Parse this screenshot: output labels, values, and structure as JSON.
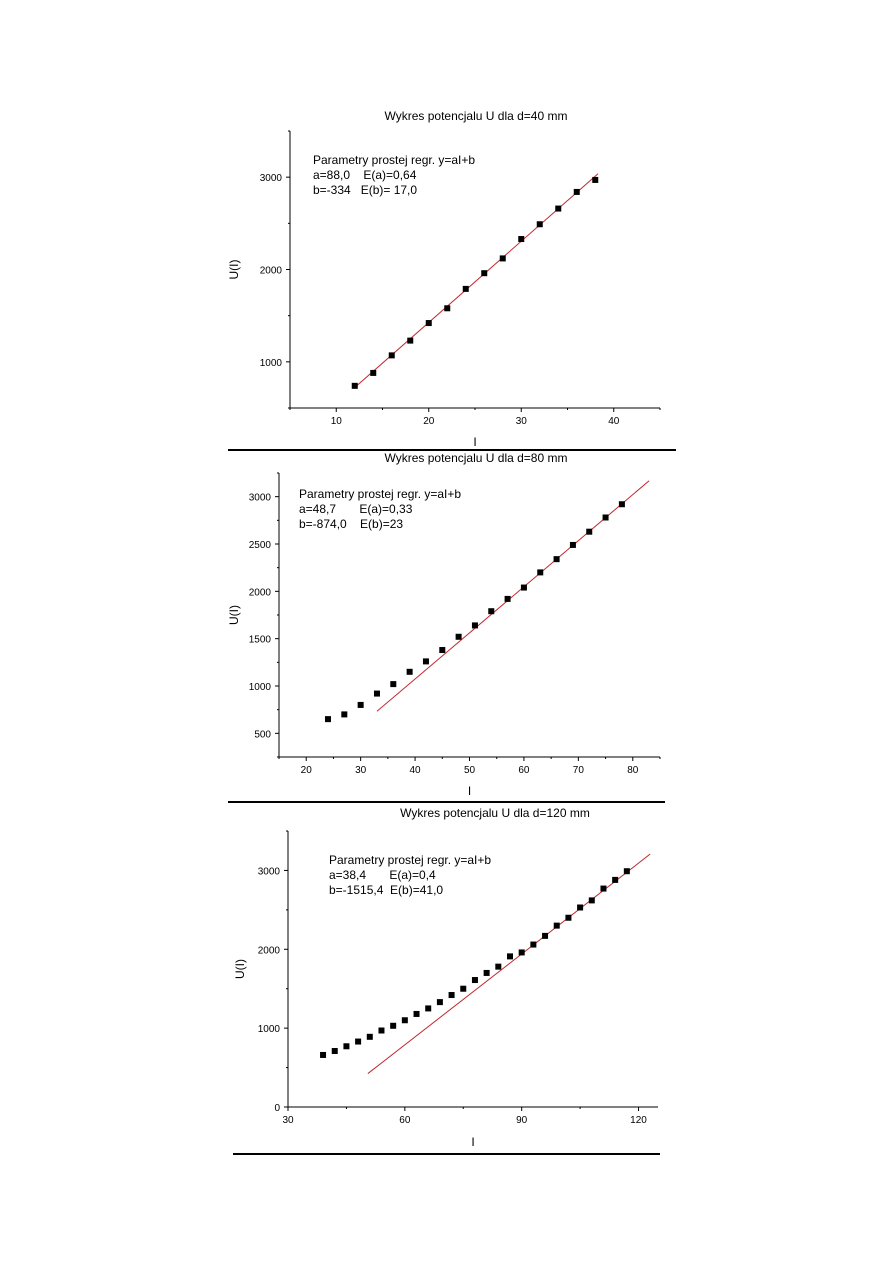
{
  "chart_data": [
    {
      "type": "scatter",
      "title": "Wykres potencjalu U dla d=40 mm",
      "xlabel": "I",
      "ylabel": "U(I)",
      "annotation": [
        "Parametry prostej regr. y=aI+b",
        "a=88,0    E(a)=0,64",
        "b=-334   E(b)= 17,0"
      ],
      "xlim": [
        5,
        45
      ],
      "ylim": [
        500,
        3500
      ],
      "xticks": [
        10,
        20,
        30,
        40
      ],
      "yticks": [
        1000,
        2000,
        3000
      ],
      "series": [
        {
          "x": [
            12,
            14,
            16,
            18,
            20,
            22,
            24,
            26,
            28,
            30,
            32,
            34,
            36,
            38
          ],
          "values": [
            740,
            880,
            1070,
            1230,
            1420,
            1580,
            1790,
            1960,
            2120,
            2330,
            2490,
            2660,
            2840,
            2970
          ]
        }
      ],
      "fit": {
        "a": 88.0,
        "b": -334,
        "x_range": [
          12,
          38.3
        ]
      }
    },
    {
      "type": "scatter",
      "title": "Wykres potencjalu U dla d=80 mm",
      "xlabel": "I",
      "ylabel": "U(I)",
      "annotation": [
        "Parametry prostej regr. y=aI+b",
        "a=48,7       E(a)=0,33",
        "b=-874,0    E(b)=23"
      ],
      "xlim": [
        15,
        85
      ],
      "ylim": [
        250,
        3250
      ],
      "xticks": [
        20,
        30,
        40,
        50,
        60,
        70,
        80
      ],
      "yticks": [
        500,
        1000,
        1500,
        2000,
        2500,
        3000
      ],
      "series": [
        {
          "x": [
            24,
            27,
            30,
            33,
            36,
            39,
            42,
            45,
            48,
            51,
            54,
            57,
            60,
            63,
            66,
            69,
            72,
            75,
            78
          ],
          "values": [
            650,
            700,
            800,
            920,
            1020,
            1150,
            1260,
            1380,
            1520,
            1640,
            1790,
            1920,
            2040,
            2200,
            2340,
            2490,
            2630,
            2780,
            2920
          ]
        }
      ],
      "fit": {
        "a": 48.7,
        "b": -874.0,
        "x_range": [
          33,
          83
        ]
      }
    },
    {
      "type": "scatter",
      "title": "Wykres potencjalu U dla d=120 mm",
      "xlabel": "I",
      "ylabel": "U(I)",
      "annotation": [
        "Parametry prostej regr. y=aI+b",
        "a=38,4       E(a)=0,4",
        "b=-1515,4  E(b)=41,0"
      ],
      "xlim": [
        30,
        125
      ],
      "ylim": [
        0,
        3500
      ],
      "xticks": [
        30,
        60,
        90,
        120
      ],
      "yticks": [
        0,
        1000,
        2000,
        3000
      ],
      "series": [
        {
          "x": [
            39,
            42,
            45,
            48,
            51,
            54,
            57,
            60,
            63,
            66,
            69,
            72,
            75,
            78,
            81,
            84,
            87,
            90,
            93,
            96,
            99,
            102,
            105,
            108,
            111,
            114,
            117
          ],
          "values": [
            660,
            710,
            770,
            830,
            890,
            970,
            1030,
            1100,
            1180,
            1250,
            1330,
            1420,
            1500,
            1610,
            1700,
            1780,
            1910,
            1960,
            2060,
            2170,
            2300,
            2400,
            2530,
            2620,
            2770,
            2880,
            2990
          ]
        }
      ],
      "fit": {
        "a": 38.4,
        "b": -1515.4,
        "x_range": [
          50.5,
          123
        ]
      }
    }
  ]
}
